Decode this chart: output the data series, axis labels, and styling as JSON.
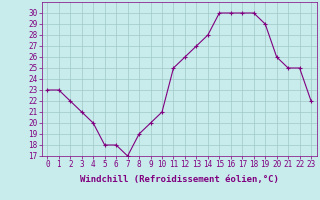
{
  "x": [
    0,
    1,
    2,
    3,
    4,
    5,
    6,
    7,
    8,
    9,
    10,
    11,
    12,
    13,
    14,
    15,
    16,
    17,
    18,
    19,
    20,
    21,
    22,
    23
  ],
  "y": [
    23,
    23,
    22,
    21,
    20,
    18,
    18,
    17,
    19,
    20,
    21,
    25,
    26,
    27,
    28,
    30,
    30,
    30,
    30,
    29,
    26,
    25,
    25,
    22
  ],
  "line_color": "#800080",
  "marker": "+",
  "marker_size": 3,
  "marker_color": "#800080",
  "bg_color": "#c8ecec",
  "grid_color": "#a0c8c8",
  "xlabel": "Windchill (Refroidissement éolien,°C)",
  "xlabel_fontsize": 6.5,
  "ylim": [
    17,
    31
  ],
  "yticks": [
    17,
    18,
    19,
    20,
    21,
    22,
    23,
    24,
    25,
    26,
    27,
    28,
    29,
    30
  ],
  "xticks": [
    0,
    1,
    2,
    3,
    4,
    5,
    6,
    7,
    8,
    9,
    10,
    11,
    12,
    13,
    14,
    15,
    16,
    17,
    18,
    19,
    20,
    21,
    22,
    23
  ],
  "tick_fontsize": 5.5,
  "tick_color": "#800080",
  "axis_color": "#800080",
  "linewidth": 0.8
}
